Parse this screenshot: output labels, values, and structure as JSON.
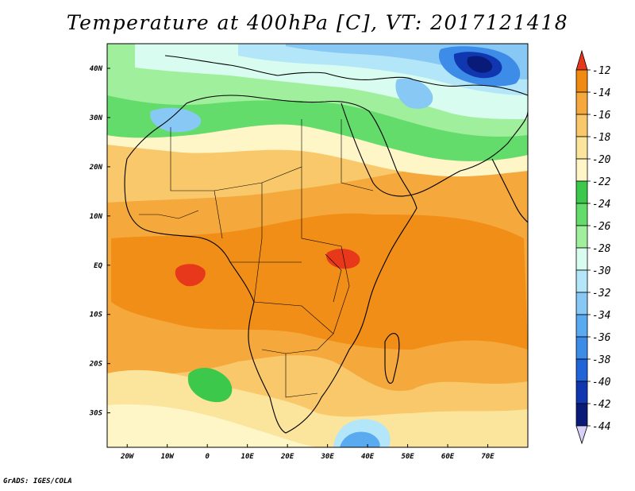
{
  "title": "Temperature at 400hPa [C], VT: 2017121418",
  "footer": "GrADS: IGES/COLA",
  "map": {
    "lon_range": [
      -25,
      80
    ],
    "lat_range": [
      -37,
      45
    ],
    "lon_ticks": [
      {
        "lon": -20,
        "label": "20W"
      },
      {
        "lon": -10,
        "label": "10W"
      },
      {
        "lon": 0,
        "label": "0"
      },
      {
        "lon": 10,
        "label": "10E"
      },
      {
        "lon": 20,
        "label": "20E"
      },
      {
        "lon": 30,
        "label": "30E"
      },
      {
        "lon": 40,
        "label": "40E"
      },
      {
        "lon": 50,
        "label": "50E"
      },
      {
        "lon": 60,
        "label": "60E"
      },
      {
        "lon": 70,
        "label": "70E"
      }
    ],
    "lat_ticks": [
      {
        "lat": 40,
        "label": "40N"
      },
      {
        "lat": 30,
        "label": "30N"
      },
      {
        "lat": 20,
        "label": "20N"
      },
      {
        "lat": 10,
        "label": "10N"
      },
      {
        "lat": 0,
        "label": "EQ"
      },
      {
        "lat": -10,
        "label": "10S"
      },
      {
        "lat": -20,
        "label": "20S"
      },
      {
        "lat": -30,
        "label": "30S"
      }
    ]
  },
  "colorbar": {
    "labels": [
      "-12",
      "-14",
      "-16",
      "-18",
      "-20",
      "-22",
      "-24",
      "-26",
      "-28",
      "-30",
      "-32",
      "-34",
      "-36",
      "-38",
      "-40",
      "-42",
      "-44"
    ],
    "colors": [
      "#e8381c",
      "#f08a10",
      "#f5a83c",
      "#f9c86a",
      "#fbe49c",
      "#fff6c8",
      "#3cc84a",
      "#64dc6c",
      "#a0ef9c",
      "#d8fdf0",
      "#b4e6fa",
      "#88c8f4",
      "#5aaaf0",
      "#3c8ce8",
      "#2064d8",
      "#1036b0",
      "#0a1a78"
    ],
    "top_arrow_color": "#e8381c",
    "bottom_arrow_color": "#d8d0f8"
  }
}
